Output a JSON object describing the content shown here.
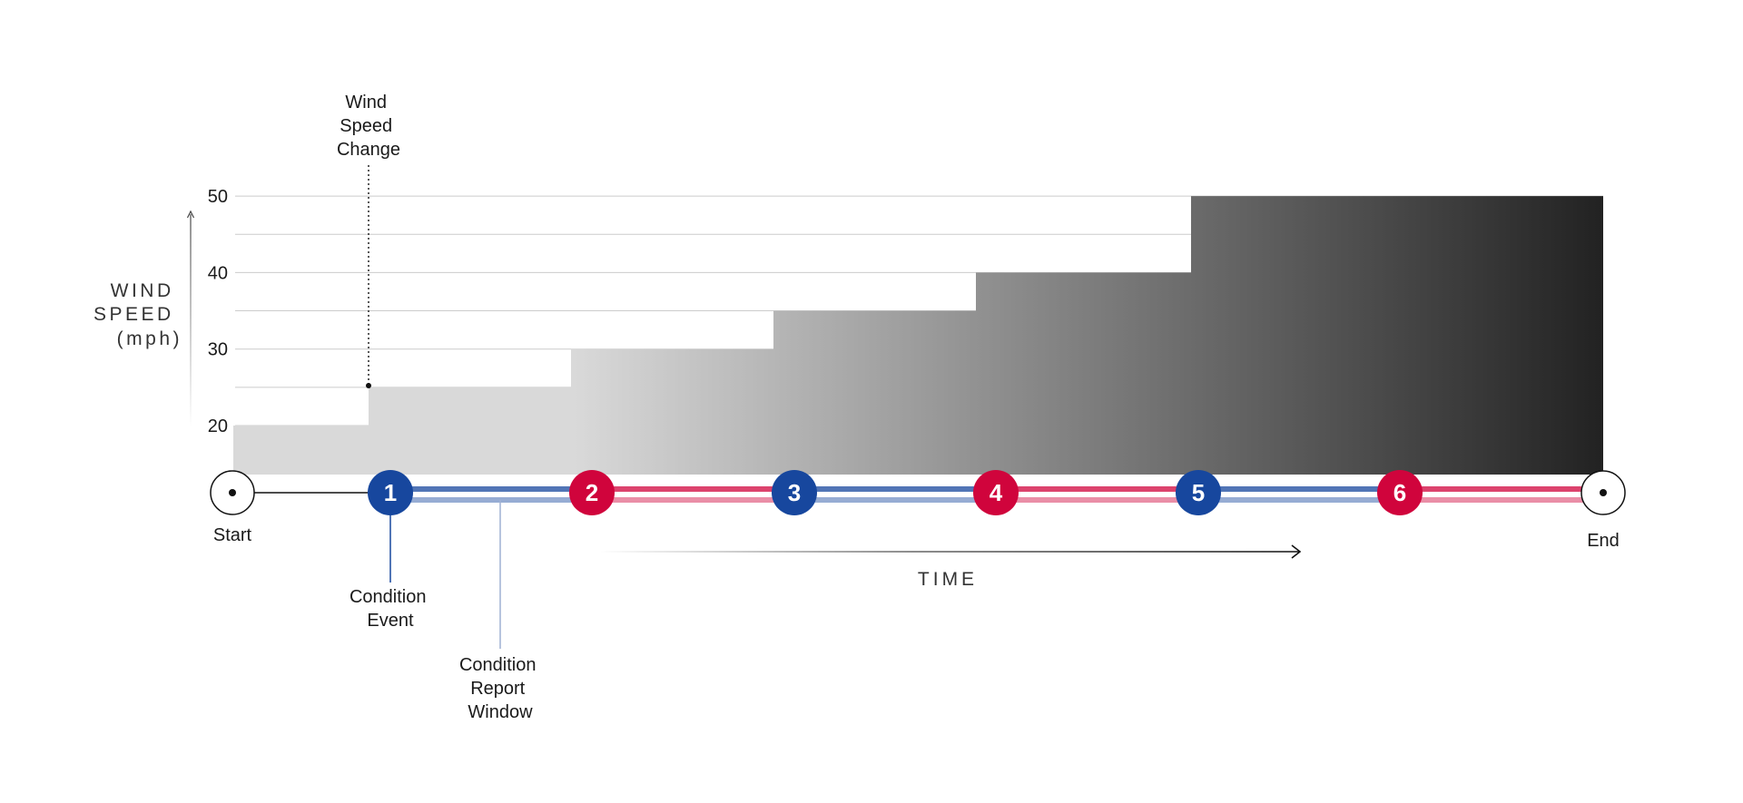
{
  "y_axis": {
    "label_lines": [
      "WIND",
      "SPEED",
      "(mph)"
    ],
    "ticks": [
      "50",
      "40",
      "30",
      "20"
    ]
  },
  "annotations": {
    "wind_speed_change": [
      "Wind",
      "Speed",
      "Change"
    ],
    "condition_event": [
      "Condition",
      "Event"
    ],
    "condition_report_window": [
      "Condition",
      "Report",
      "Window"
    ]
  },
  "x_axis": {
    "label": "TIME"
  },
  "markers": {
    "start": "Start",
    "end": "End",
    "steps": [
      "1",
      "2",
      "3",
      "4",
      "5",
      "6"
    ]
  },
  "colors": {
    "blue": "#17479e",
    "red": "#d0043c",
    "light_fill": "#d9d9d9",
    "dark_fill": "#222222",
    "grid": "#cccccc",
    "text": "#1a1a1a"
  },
  "chart_data": {
    "type": "step-area",
    "y_ticks": [
      20,
      30,
      40,
      50
    ],
    "steps": [
      {
        "segment": "Start–1",
        "wind_speed_mph": 20
      },
      {
        "segment": "1–2",
        "wind_speed_mph": 25
      },
      {
        "segment": "2–3",
        "wind_speed_mph": 30
      },
      {
        "segment": "3–4",
        "wind_speed_mph": 35
      },
      {
        "segment": "4–5",
        "wind_speed_mph": 40
      },
      {
        "segment": "5–End",
        "wind_speed_mph": 50
      }
    ],
    "step_colors": [
      "blue",
      "red",
      "blue",
      "red",
      "blue",
      "red"
    ]
  }
}
